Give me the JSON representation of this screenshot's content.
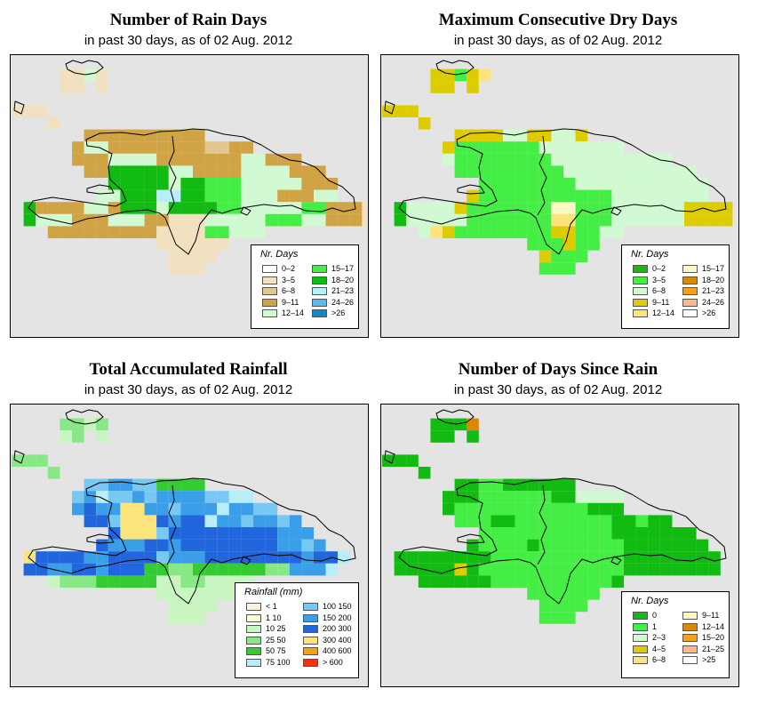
{
  "panels": [
    {
      "id": "rain-days",
      "title": "Number of Rain Days",
      "subtitle": "in past 30 days, as of  02 Aug. 2012",
      "legend_title": "Nr. Days",
      "legend_columns": [
        [
          {
            "label": "0–2",
            "color": "#ffffff"
          },
          {
            "label": "3–5",
            "color": "#f1e1c1"
          },
          {
            "label": "6–8",
            "color": "#e1c68e"
          },
          {
            "label": "9–11",
            "color": "#d0a445"
          },
          {
            "label": "12–14",
            "color": "#d2fad2"
          }
        ],
        [
          {
            "label": "15–17",
            "color": "#44ee44"
          },
          {
            "label": "18–20",
            "color": "#11bb11"
          },
          {
            "label": "21–23",
            "color": "#b8eefa"
          },
          {
            "label": "24–26",
            "color": "#5fb8e8"
          },
          {
            "label": ">26",
            "color": "#1188cc"
          }
        ]
      ],
      "grid_palette": {
        "0": null,
        "A": "#f1e1c1",
        "B": "#e1c68e",
        "C": "#d0a445",
        "D": "#d2fad2",
        "E": "#44ee44",
        "F": "#11bb11",
        "G": "#b8eefa",
        "H": "#5fb8e8"
      },
      "grid": [
        "0000000000000000000000000000",
        "0000AADA00000000000000000000",
        "0000AA0A00000000000000000000",
        "0000000000000000000000000000",
        "AAA00000000000000000000000000",
        "000A00000000000000000000000000",
        "000000CCCCCCCCCC00000000000000",
        "00000CDDCCCCCCCCBBCC0000000000",
        "00000CCCDDDDCCCCCCCDDCCC0000000",
        "000000CCFFFFFDDCCCCDDDDCCC00000",
        "00000000FFFFFDFFEEEDDDDDCCC0000",
        "0000000DDFFFGGFFEEEDDDCCCDD000",
        "0FCCCCDDCFFFDFFFFEEDDDDDEECCCA0",
        "0FDDDCCCDDDCCAAADDDDDEEEDDCCCA0",
        "000CCCCCCCCCAAAAEEDDD0000000000",
        "000000000000AAAAAA00000000000000",
        "0000000000000AAAA0000000000000000",
        "0000000000000AAA00000000000000000"
      ]
    },
    {
      "id": "dry-days",
      "title": "Maximum Consecutive Dry Days",
      "subtitle": "in past 30 days, as of  02 Aug. 2012",
      "legend_title": "Nr. Days",
      "legend_columns": [
        [
          {
            "label": "0–2",
            "color": "#11bb11"
          },
          {
            "label": "3–5",
            "color": "#44ee44"
          },
          {
            "label": "6–8",
            "color": "#d2fad2"
          },
          {
            "label": "9–11",
            "color": "#ddcc00"
          },
          {
            "label": "12–14",
            "color": "#fbe47a"
          }
        ],
        [
          {
            "label": "15–17",
            "color": "#fdf9c4"
          },
          {
            "label": "18–20",
            "color": "#dd8800"
          },
          {
            "label": "21–23",
            "color": "#f4a21a"
          },
          {
            "label": "24–26",
            "color": "#fbb98a"
          },
          {
            "label": ">26",
            "color": "#ffffff"
          }
        ]
      ],
      "grid_palette": {
        "0": null,
        "A": "#11bb11",
        "B": "#44ee44",
        "C": "#d2fad2",
        "D": "#ddcc00",
        "E": "#fbe47a",
        "F": "#fdf9c4"
      },
      "grid": [
        "0000000000000000000000000000",
        "0000DDBDE0000000000000000000",
        "0000DD0D00000000000000000000",
        "0000000000000000000000000000",
        "DDD00000000000000000000000000",
        "000D00000000000000000000000000",
        "000000DDDDCCDDCCD00000000000000",
        "00000DBBBBBBBCCCCCCC0000000000",
        "00000CBBBBBBBBCCCCCCCCCC000000",
        "000000BBBBBBBBBCCCCCCCCCCC00000",
        "00000000BBBBBBBBCCCCCCCCCCC0000",
        "0000000DBBBBBBBBBBBCCCCCCCC000",
        "0ACCCCDBBBBBBBFFBBBCCCCCCDDDD0",
        "0ACCCCCBBBBBBBEEBBBCCCCCCDDDD0",
        "000CEDBBBBBBBBDDBBCC0000000000",
        "000000000000BBBDBB00000000000000",
        "0000000000000DBBB0000000000000000",
        "0000000000000BBB00000000000000000"
      ]
    },
    {
      "id": "total-rain",
      "title": "Total Accumulated Rainfall",
      "subtitle": "in past 30 days, as of  02 Aug. 2012",
      "legend_title": "Rainfall (mm)",
      "legend_columns": [
        [
          {
            "label": "< 1",
            "color": "#fdf1e0"
          },
          {
            "label": "1    10",
            "color": "#fdfbd8"
          },
          {
            "label": "10    25",
            "color": "#c8f5c0"
          },
          {
            "label": "25    50",
            "color": "#88e888"
          },
          {
            "label": "50    75",
            "color": "#33cc33"
          },
          {
            "label": "75   100",
            "color": "#b8eefa"
          }
        ],
        [
          {
            "label": "100   150",
            "color": "#77c8f2"
          },
          {
            "label": "150   200",
            "color": "#3a9ee8"
          },
          {
            "label": "200   300",
            "color": "#2266dd"
          },
          {
            "label": "300   400",
            "color": "#fbe47a"
          },
          {
            "label": "400   600",
            "color": "#f4a21a"
          },
          {
            "label": "> 600",
            "color": "#ee3311"
          }
        ]
      ],
      "grid_palette": {
        "0": null,
        "A": "#fdf1e0",
        "B": "#fdfbd8",
        "C": "#c8f5c0",
        "D": "#88e888",
        "E": "#33cc33",
        "F": "#b8eefa",
        "G": "#77c8f2",
        "H": "#3a9ee8",
        "I": "#2266dd",
        "J": "#fbe47a"
      },
      "grid": [
        "0000000000000000000000000000",
        "0000DDCD00000000000000000000",
        "0000CD0C00000000000000000000",
        "0000000000000000000000000000",
        "DDD00000000000000000000000000",
        "000D00000000000000000000000000",
        "000000GGHHGGEEEE00000000000000",
        "00000GHFGGHGHHHHGGFF0000000000",
        "00000HIHHJJHHGHHHFHHGG00000000",
        "000000IIGJJJIHIIFHHGHHGH00000",
        "00000000IJJJGIIIIIIIIIHHH0000",
        "0000000IHHHIIHIIIIIIIIHHGH000",
        "0JIIIIHHIIIIGHHHIIIIIIIIHIIF0",
        "0IIHHIIHIIIEEDDEEEEEEDDHHHF0",
        "000CDDDEEEEECCDDCCCC0000000000",
        "000000000000CCCCCCC0000000000",
        "0000000000000CCCC00000000000000",
        "0000000000000CCC000000000000000"
      ]
    },
    {
      "id": "days-since-rain",
      "title": "Number of Days Since Rain",
      "subtitle": "in past 30 days, as of  02 Aug. 2012",
      "legend_title": "Nr. Days",
      "legend_columns": [
        [
          {
            "label": "0",
            "color": "#11bb11"
          },
          {
            "label": "1",
            "color": "#44ee44"
          },
          {
            "label": "2–3",
            "color": "#d2fad2"
          },
          {
            "label": "4–5",
            "color": "#ddcc00"
          },
          {
            "label": "6–8",
            "color": "#fbe47a"
          }
        ],
        [
          {
            "label": "9–11",
            "color": "#fdf9c4"
          },
          {
            "label": "12–14",
            "color": "#dd8800"
          },
          {
            "label": "15–20",
            "color": "#f4a21a"
          },
          {
            "label": "21–25",
            "color": "#fbb98a"
          },
          {
            "label": ">25",
            "color": "#ffffff"
          }
        ]
      ],
      "grid_palette": {
        "0": null,
        "A": "#11bb11",
        "B": "#44ee44",
        "C": "#d2fad2",
        "D": "#ddcc00",
        "G": "#dd8800"
      },
      "grid": [
        "0000000000000000000000000000",
        "0000AAAG00000000000000000000",
        "0000AA0A00000000000000000000",
        "0000000000000000000000000000",
        "AAA00000000000000000000000000",
        "000A00000000000000000000000000",
        "000000AABBAAAAAA00000000000000",
        "00000AAABBBBBBAACCCC0000000000",
        "00000ABBBBBBBBBBBAAA00000000000",
        "000000BBBAABBBBBBBBAABAA00000",
        "00000000BBBBBBBBBBBAAAAAAA0000",
        "0000000ABBBBABBBBBBBAAAAAAA000",
        "0AAAAAAAABBBBBBBBBBBAAAAAAAA0",
        "0AAAAADABBBBBBBBBBBBAAAAAAAA0",
        "000AAAAAABBBBBBBBBBA0000000000",
        "000000000000BBBBBB00000000000000",
        "0000000000000BBBB0000000000000000",
        "0000000000000BBB00000000000000000"
      ]
    }
  ]
}
